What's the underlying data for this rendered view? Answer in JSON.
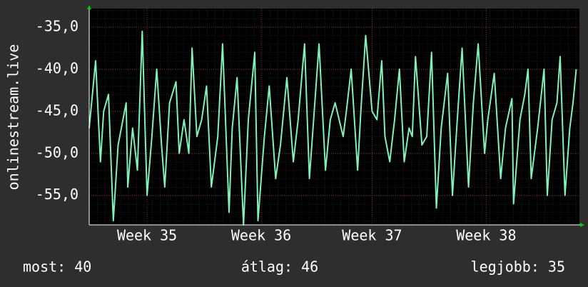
{
  "chart_data": {
    "type": "line",
    "y_label": "onlinestream.live",
    "xlim": [
      0,
      30.5
    ],
    "xticks": [
      {
        "value": 3.6,
        "label": "Week 35"
      },
      {
        "value": 10.7,
        "label": "Week 36"
      },
      {
        "value": 17.6,
        "label": "Week 37"
      },
      {
        "value": 24.7,
        "label": "Week 38"
      }
    ],
    "ylim": [
      -58.5,
      -32.8
    ],
    "yticks": [
      {
        "value": -55,
        "label": "-55,0"
      },
      {
        "value": -50,
        "label": "-50,0"
      },
      {
        "value": -45,
        "label": "-45,0"
      },
      {
        "value": -40,
        "label": "-40,0"
      },
      {
        "value": -35,
        "label": "-35,0"
      }
    ],
    "grid": true,
    "x": [
      0,
      0.4,
      0.7,
      0.9,
      1.2,
      1.5,
      1.8,
      2.3,
      2.4,
      2.7,
      3.0,
      3.3,
      3.6,
      3.9,
      4.2,
      4.5,
      4.7,
      5.0,
      5.4,
      5.6,
      5.9,
      6.2,
      6.4,
      6.7,
      7.0,
      7.3,
      7.6,
      8.0,
      8.3,
      8.7,
      8.9,
      9.2,
      9.6,
      9.9,
      10.3,
      10.5,
      10.9,
      11.2,
      11.6,
      11.9,
      12.3,
      12.7,
      13.0,
      13.4,
      13.7,
      14.0,
      14.3,
      14.7,
      15.0,
      15.3,
      15.8,
      16.0,
      16.3,
      16.7,
      16.9,
      17.2,
      17.6,
      17.9,
      18.2,
      18.4,
      18.7,
      19.0,
      19.3,
      19.6,
      19.9,
      20.1,
      20.3,
      20.7,
      21.0,
      21.3,
      21.6,
      21.9,
      22.3,
      22.6,
      22.9,
      23.2,
      23.6,
      23.9,
      24.2,
      24.6,
      24.8,
      25.2,
      25.6,
      25.9,
      26.3,
      26.4,
      26.8,
      27.1,
      27.3,
      27.5,
      27.9,
      28.3,
      28.5,
      28.8,
      29.1,
      29.3,
      29.6,
      29.9,
      30.1,
      30.3
    ],
    "series": [
      {
        "color": "#80f2b8",
        "values": [
          -47,
          -39,
          -51,
          -45,
          -43,
          -58,
          -49,
          -44,
          -54,
          -47,
          -52,
          -35.5,
          -55,
          -48,
          -40,
          -49,
          -54,
          -44,
          -41.5,
          -50,
          -46,
          -50,
          -37.5,
          -48,
          -46,
          -42,
          -54,
          -48,
          -37,
          -57,
          -47,
          -41,
          -58.5,
          -46,
          -38,
          -58,
          -48,
          -42,
          -53,
          -49,
          -41,
          -51,
          -46,
          -37,
          -53,
          -45,
          -37,
          -52,
          -46,
          -44,
          -48,
          -45,
          -40,
          -52,
          -45,
          -36,
          -45,
          -46,
          -39,
          -48,
          -51,
          -46,
          -40,
          -51,
          -47,
          -48,
          -38.5,
          -49,
          -48,
          -38,
          -56.5,
          -47,
          -40.5,
          -55,
          -46,
          -37.5,
          -54,
          -44,
          -37,
          -50,
          -46,
          -40.5,
          -53,
          -47,
          -43.5,
          -56,
          -46,
          -43,
          -40,
          -53,
          -47,
          -40,
          -55,
          -46,
          -44,
          -38.5,
          -55,
          -47,
          -44,
          -40
        ]
      }
    ],
    "stats": [
      "most: 40",
      "átlag: 46",
      "legjobb: 35"
    ]
  }
}
